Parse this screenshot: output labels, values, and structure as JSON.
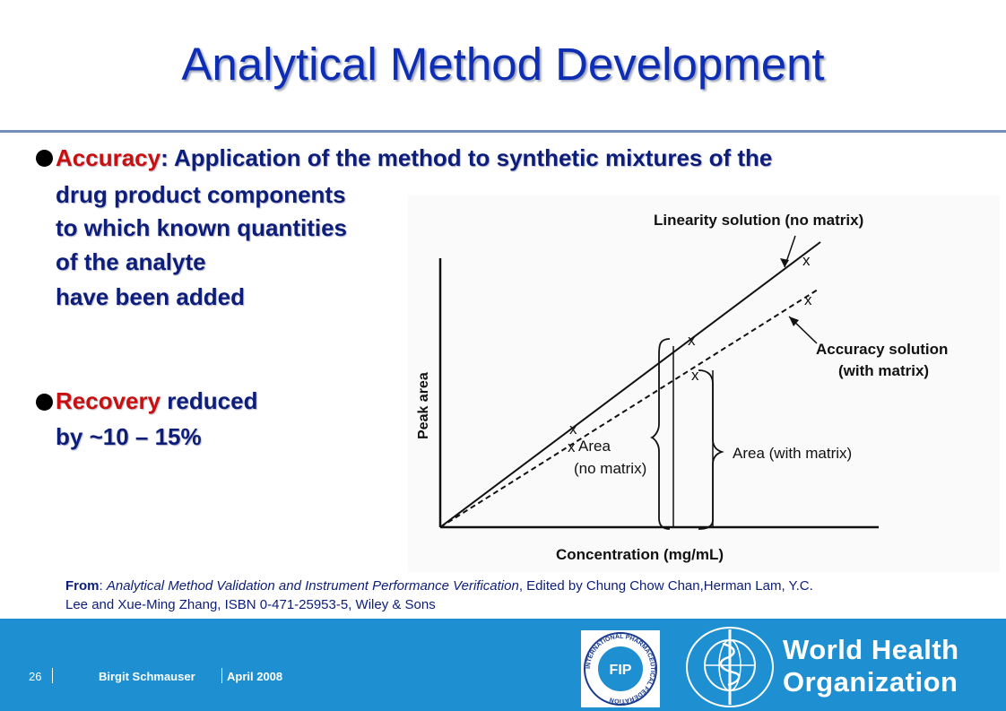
{
  "slide": {
    "title": "Analytical Method Development",
    "bullets": [
      {
        "term": "Accuracy",
        "line1_rest": ": Application of the method to synthetic mixtures of the",
        "lines": [
          "drug product components",
          "to which known quantities",
          "of the analyte",
          "have been added"
        ]
      },
      {
        "term": "Recovery",
        "line1_rest": " reduced",
        "lines": [
          "by ~10 – 15%"
        ]
      }
    ]
  },
  "figure": {
    "xlabel": "Concentration (mg/mL)",
    "ylabel": "Peak area",
    "label_linearity": "Linearity solution (no matrix)",
    "label_accuracy_1": "Accuracy solution",
    "label_accuracy_2": "(with matrix)",
    "label_area_no_matrix_1": "Area",
    "label_area_no_matrix_2": "(no matrix)",
    "label_area_with_matrix": "Area (with matrix)",
    "point_marker": "x"
  },
  "source": {
    "from_label": "From",
    "book_title": "Analytical Method Validation and Instrument Performance Verification",
    "rest_line1": ", Edited by Chung Chow Chan,Herman Lam, Y.C.",
    "line2": "Lee and Xue-Ming Zhang, ISBN 0-471-25953-5, Wiley & Sons"
  },
  "footer": {
    "page_number": "26",
    "presenter": "Birgit Schmauser",
    "date": "April 2008",
    "who_line1": "World Health",
    "who_line2": "Organization",
    "fip_abbrev": "FIP",
    "fip_ring_text": "INTERNATIONAL PHARMACEUTICAL FEDERATION"
  },
  "colors": {
    "title": "#0c2db4",
    "body_text": "#0c1d7a",
    "highlight_red": "#c81010",
    "footer_bar": "#1e8fd1"
  }
}
